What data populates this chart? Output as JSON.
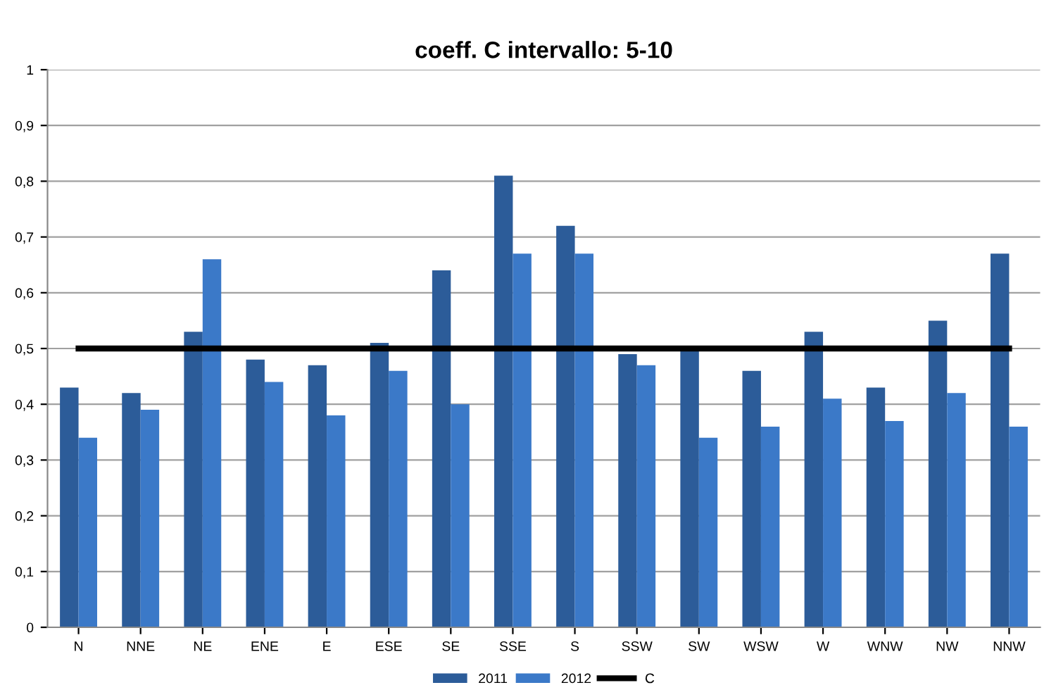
{
  "chart_data": {
    "type": "bar",
    "title": "coeff. C intervallo: 5-10",
    "categories": [
      "N",
      "NNE",
      "NE",
      "ENE",
      "E",
      "ESE",
      "SE",
      "SSE",
      "S",
      "SSW",
      "SW",
      "WSW",
      "W",
      "WNW",
      "NW",
      "NNW"
    ],
    "series": [
      {
        "name": "2011",
        "color": "#2c5c99",
        "values": [
          0.43,
          0.42,
          0.53,
          0.48,
          0.47,
          0.51,
          0.64,
          0.81,
          0.72,
          0.49,
          0.5,
          0.46,
          0.53,
          0.43,
          0.55,
          0.67
        ]
      },
      {
        "name": "2012",
        "color": "#3b79c8",
        "values": [
          0.34,
          0.39,
          0.66,
          0.44,
          0.38,
          0.46,
          0.4,
          0.67,
          0.67,
          0.47,
          0.34,
          0.36,
          0.41,
          0.37,
          0.42,
          0.36
        ]
      },
      {
        "name": "C",
        "type": "line",
        "color": "#000000",
        "values": [
          0.5,
          0.5,
          0.5,
          0.5,
          0.5,
          0.5,
          0.5,
          0.5,
          0.5,
          0.5,
          0.5,
          0.5,
          0.5,
          0.5,
          0.5,
          0.5
        ]
      }
    ],
    "ylim": [
      0,
      1
    ],
    "yticks": [
      0,
      {
        "value": 0.1,
        "label": "0,1"
      },
      {
        "value": 0.2,
        "label": "0,2"
      },
      {
        "value": 0.3,
        "label": "0,3"
      },
      {
        "value": 0.4,
        "label": "0,4"
      },
      {
        "value": 0.5,
        "label": "0,5"
      },
      {
        "value": 0.6,
        "label": "0,6"
      },
      {
        "value": 0.7,
        "label": "0,7"
      },
      {
        "value": 0.8,
        "label": "0,8"
      },
      {
        "value": 0.9,
        "label": "0,9"
      },
      1
    ],
    "grid": "y",
    "legend": "bottom",
    "marker": "none",
    "line_style": "solid"
  }
}
